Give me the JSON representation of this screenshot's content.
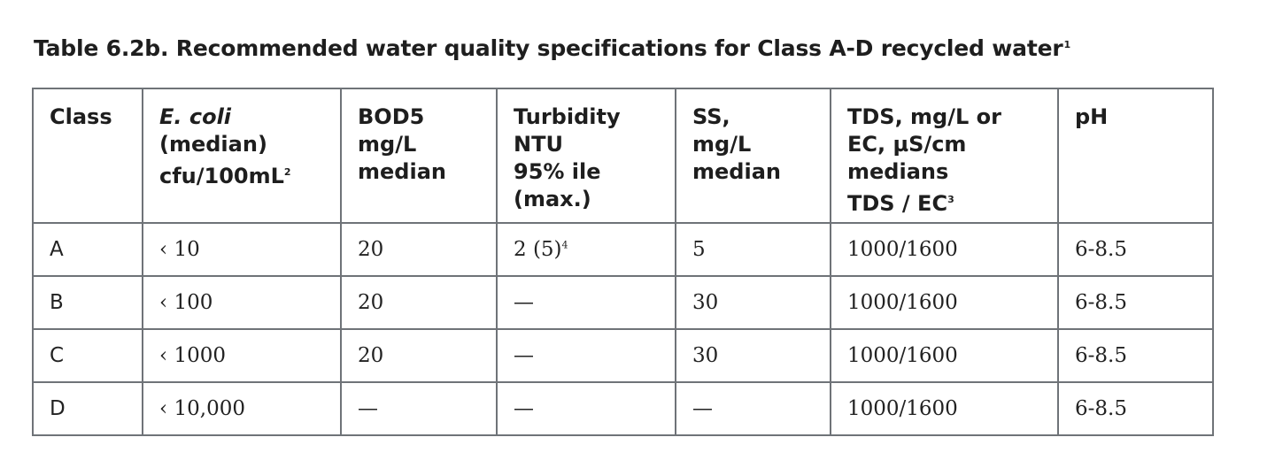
{
  "caption": {
    "text": "Table 6.2b. Recommended water quality specifications for Class A-D recycled water",
    "footnote_mark": "1"
  },
  "table": {
    "headers": [
      {
        "lines": [
          "Class"
        ]
      },
      {
        "italic": "E. coli",
        "lines": [
          "(median)",
          "cfu/100mL"
        ],
        "footnote_mark": "2"
      },
      {
        "lines": [
          "BOD5",
          "mg/L",
          "median"
        ]
      },
      {
        "lines": [
          "Turbidity",
          "NTU",
          "95% ile",
          "(max.)"
        ]
      },
      {
        "lines": [
          "SS,",
          "mg/L",
          "median"
        ]
      },
      {
        "lines": [
          "TDS, mg/L or",
          "EC, µS/cm",
          "medians",
          "TDS / EC"
        ],
        "footnote_mark": "3"
      },
      {
        "lines": [
          "pH"
        ]
      }
    ],
    "rows": [
      {
        "class": "A",
        "ecoli": "‹ 10",
        "bod5": "20",
        "turbidity": "2 (5)",
        "turbidity_footnote_mark": "4",
        "ss": "5",
        "tds_ec": "1000/1600",
        "ph": "6-8.5"
      },
      {
        "class": "B",
        "ecoli": "‹ 100",
        "bod5": "20",
        "turbidity": "—",
        "ss": "30",
        "tds_ec": "1000/1600",
        "ph": "6-8.5"
      },
      {
        "class": "C",
        "ecoli": "‹ 1000",
        "bod5": "20",
        "turbidity": "—",
        "ss": "30",
        "tds_ec": "1000/1600",
        "ph": "6-8.5"
      },
      {
        "class": "D",
        "ecoli": "‹ 10,000",
        "bod5": "—",
        "turbidity": "—",
        "ss": "—",
        "tds_ec": "1000/1600",
        "ph": "6-8.5"
      }
    ]
  }
}
